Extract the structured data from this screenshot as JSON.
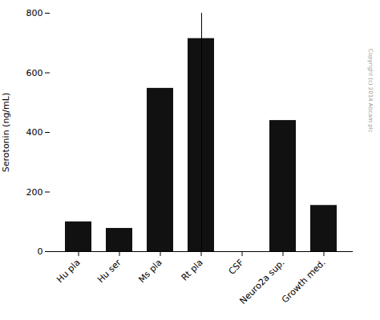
{
  "chart_data": {
    "type": "bar",
    "categories": [
      "Hu pla",
      "Hu ser",
      "Ms pla",
      "Rt pla",
      "CSF",
      "Neuro2a sup.",
      "Growth med."
    ],
    "values": [
      100,
      78,
      548,
      715,
      0,
      440,
      155
    ],
    "color": "#111111",
    "ylabel": "Serotonin (ng/mL)",
    "ylim": [
      0,
      800
    ],
    "yticks": [
      0,
      200,
      400,
      600,
      800
    ],
    "grid": false,
    "annotation": "Copyright (c) 2014 Abcam plc"
  }
}
